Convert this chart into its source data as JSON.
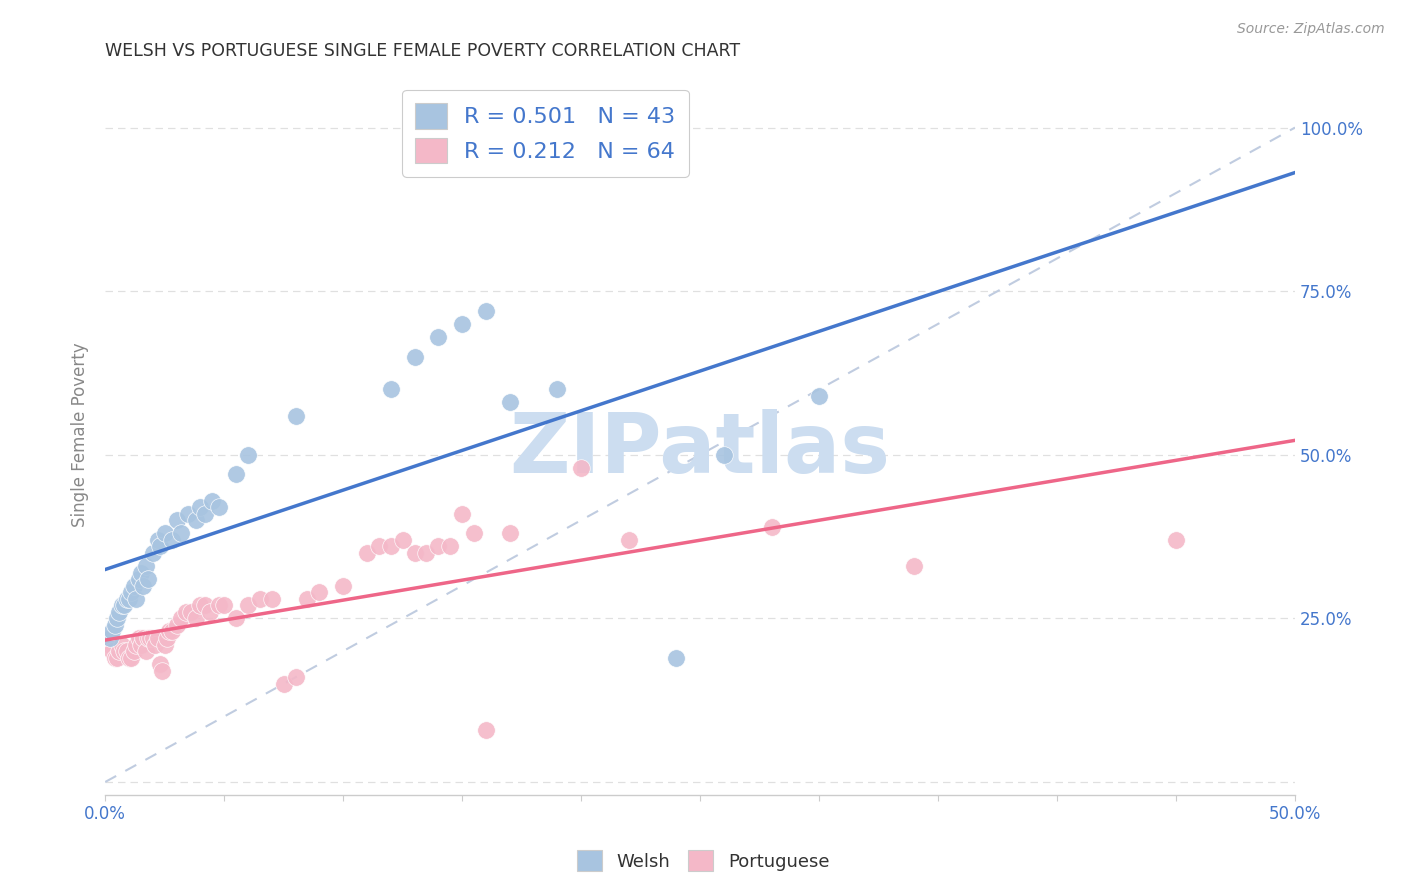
{
  "title": "WELSH VS PORTUGUESE SINGLE FEMALE POVERTY CORRELATION CHART",
  "source": "Source: ZipAtlas.com",
  "ylabel": "Single Female Poverty",
  "xlim": [
    0.0,
    0.5
  ],
  "ylim": [
    -0.02,
    1.08
  ],
  "xticks": [
    0.0,
    0.05,
    0.1,
    0.15,
    0.2,
    0.25,
    0.3,
    0.35,
    0.4,
    0.45,
    0.5
  ],
  "xticklabels": [
    "0.0%",
    "",
    "",
    "",
    "",
    "",
    "",
    "",
    "",
    "",
    "50.0%"
  ],
  "ytick_positions": [
    0.0,
    0.25,
    0.5,
    0.75,
    1.0
  ],
  "ytick_labels_right": [
    "",
    "25.0%",
    "50.0%",
    "75.0%",
    "100.0%"
  ],
  "welsh_R": 0.501,
  "welsh_N": 43,
  "portuguese_R": 0.212,
  "portuguese_N": 64,
  "welsh_color": "#a8c4e0",
  "portuguese_color": "#f4b8c8",
  "trendline_welsh_color": "#4477cc",
  "trendline_portuguese_color": "#ee6688",
  "diagonal_color": "#c0cce0",
  "welsh_scatter": [
    [
      0.002,
      0.22
    ],
    [
      0.003,
      0.23
    ],
    [
      0.004,
      0.24
    ],
    [
      0.005,
      0.25
    ],
    [
      0.006,
      0.26
    ],
    [
      0.007,
      0.27
    ],
    [
      0.008,
      0.27
    ],
    [
      0.009,
      0.28
    ],
    [
      0.01,
      0.28
    ],
    [
      0.011,
      0.29
    ],
    [
      0.012,
      0.3
    ],
    [
      0.013,
      0.28
    ],
    [
      0.014,
      0.31
    ],
    [
      0.015,
      0.32
    ],
    [
      0.016,
      0.3
    ],
    [
      0.017,
      0.33
    ],
    [
      0.018,
      0.31
    ],
    [
      0.02,
      0.35
    ],
    [
      0.022,
      0.37
    ],
    [
      0.023,
      0.36
    ],
    [
      0.025,
      0.38
    ],
    [
      0.028,
      0.37
    ],
    [
      0.03,
      0.4
    ],
    [
      0.032,
      0.38
    ],
    [
      0.035,
      0.41
    ],
    [
      0.038,
      0.4
    ],
    [
      0.04,
      0.42
    ],
    [
      0.042,
      0.41
    ],
    [
      0.045,
      0.43
    ],
    [
      0.048,
      0.42
    ],
    [
      0.055,
      0.47
    ],
    [
      0.06,
      0.5
    ],
    [
      0.08,
      0.56
    ],
    [
      0.12,
      0.6
    ],
    [
      0.13,
      0.65
    ],
    [
      0.14,
      0.68
    ],
    [
      0.15,
      0.7
    ],
    [
      0.16,
      0.72
    ],
    [
      0.17,
      0.58
    ],
    [
      0.19,
      0.6
    ],
    [
      0.24,
      0.19
    ],
    [
      0.26,
      0.5
    ],
    [
      0.3,
      0.59
    ]
  ],
  "portuguese_scatter": [
    [
      0.001,
      0.22
    ],
    [
      0.002,
      0.21
    ],
    [
      0.003,
      0.2
    ],
    [
      0.004,
      0.19
    ],
    [
      0.005,
      0.19
    ],
    [
      0.006,
      0.2
    ],
    [
      0.007,
      0.21
    ],
    [
      0.008,
      0.2
    ],
    [
      0.009,
      0.2
    ],
    [
      0.01,
      0.19
    ],
    [
      0.011,
      0.19
    ],
    [
      0.012,
      0.2
    ],
    [
      0.013,
      0.21
    ],
    [
      0.014,
      0.22
    ],
    [
      0.015,
      0.21
    ],
    [
      0.016,
      0.22
    ],
    [
      0.017,
      0.2
    ],
    [
      0.018,
      0.22
    ],
    [
      0.019,
      0.22
    ],
    [
      0.02,
      0.22
    ],
    [
      0.021,
      0.21
    ],
    [
      0.022,
      0.22
    ],
    [
      0.023,
      0.18
    ],
    [
      0.024,
      0.17
    ],
    [
      0.025,
      0.21
    ],
    [
      0.026,
      0.22
    ],
    [
      0.027,
      0.23
    ],
    [
      0.028,
      0.23
    ],
    [
      0.03,
      0.24
    ],
    [
      0.032,
      0.25
    ],
    [
      0.034,
      0.26
    ],
    [
      0.036,
      0.26
    ],
    [
      0.038,
      0.25
    ],
    [
      0.04,
      0.27
    ],
    [
      0.042,
      0.27
    ],
    [
      0.044,
      0.26
    ],
    [
      0.048,
      0.27
    ],
    [
      0.05,
      0.27
    ],
    [
      0.055,
      0.25
    ],
    [
      0.06,
      0.27
    ],
    [
      0.065,
      0.28
    ],
    [
      0.07,
      0.28
    ],
    [
      0.075,
      0.15
    ],
    [
      0.08,
      0.16
    ],
    [
      0.085,
      0.28
    ],
    [
      0.09,
      0.29
    ],
    [
      0.1,
      0.3
    ],
    [
      0.11,
      0.35
    ],
    [
      0.115,
      0.36
    ],
    [
      0.12,
      0.36
    ],
    [
      0.125,
      0.37
    ],
    [
      0.13,
      0.35
    ],
    [
      0.135,
      0.35
    ],
    [
      0.14,
      0.36
    ],
    [
      0.145,
      0.36
    ],
    [
      0.15,
      0.41
    ],
    [
      0.155,
      0.38
    ],
    [
      0.16,
      0.08
    ],
    [
      0.17,
      0.38
    ],
    [
      0.2,
      0.48
    ],
    [
      0.22,
      0.37
    ],
    [
      0.28,
      0.39
    ],
    [
      0.34,
      0.33
    ],
    [
      0.45,
      0.37
    ]
  ],
  "background_color": "#ffffff",
  "grid_color": "#e0e0e0",
  "grid_style": "--",
  "title_color": "#333333",
  "axis_label_color": "#888888",
  "tick_color": "#4477cc",
  "watermark_text": "ZIPatlas",
  "watermark_color": "#ccddf0",
  "watermark_fontsize": 60,
  "legend_text_color": "#4477cc",
  "legend_fontsize": 16
}
